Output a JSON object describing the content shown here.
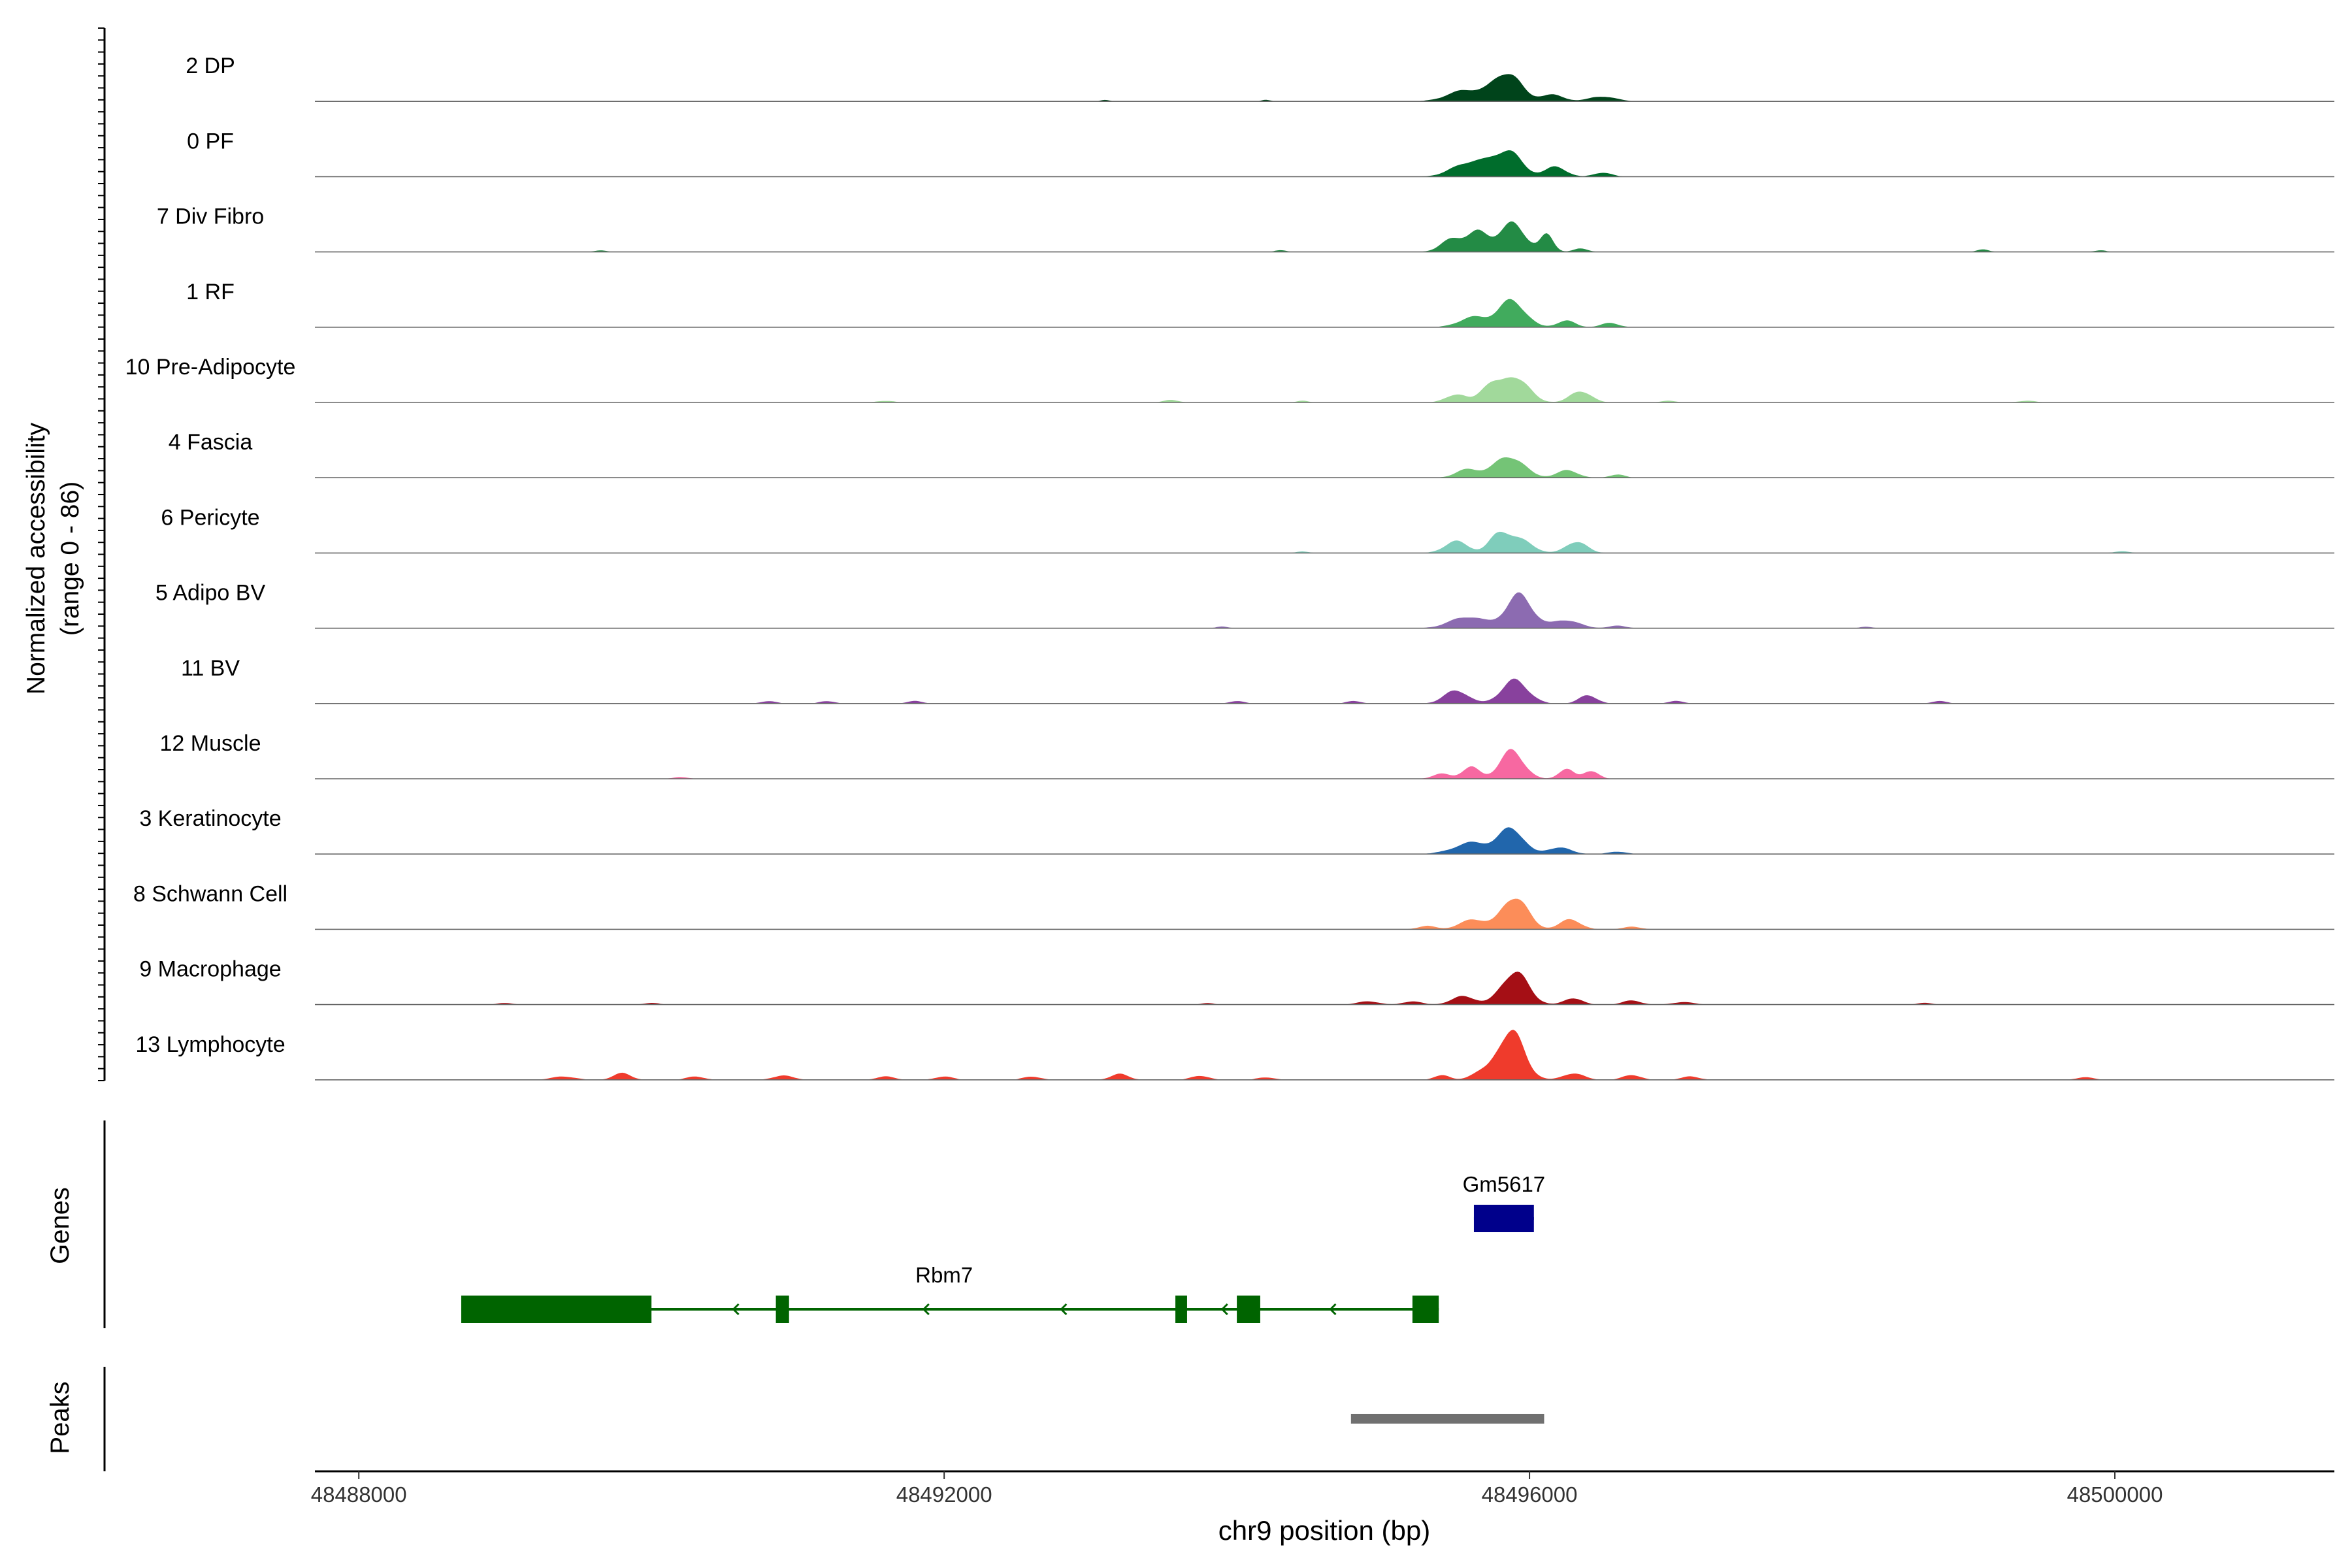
{
  "chart_data": {
    "type": "area",
    "title": "",
    "ylabel": "Normalized accessibility",
    "ylabel2": "(range 0 - 86)",
    "xlabel": "chr9 position (bp)",
    "xlim": [
      48487700,
      48501500
    ],
    "ylim": [
      0,
      86
    ],
    "x_ticks": [
      48488000,
      48492000,
      48496000,
      48500000
    ],
    "x_tick_labels": [
      "48488000",
      "48492000",
      "48496000",
      "48500000"
    ],
    "tracks": [
      {
        "name": "2 DP",
        "color": "#00441b",
        "peaks": [
          [
            48495580,
            14,
            130
          ],
          [
            48495850,
            34,
            90
          ],
          [
            48496150,
            8,
            80
          ],
          [
            48496500,
            6,
            90
          ],
          [
            48493100,
            2,
            30
          ],
          [
            48494200,
            2,
            30
          ]
        ]
      },
      {
        "name": "0 PF",
        "color": "#006d2c",
        "peaks": [
          [
            48495600,
            18,
            120
          ],
          [
            48495850,
            30,
            95
          ],
          [
            48496180,
            12,
            70
          ],
          [
            48496500,
            5,
            60
          ]
        ]
      },
      {
        "name": "7 Div Fibro",
        "color": "#238b45",
        "peaks": [
          [
            48495480,
            16,
            80
          ],
          [
            48495650,
            22,
            70
          ],
          [
            48495880,
            34,
            90
          ],
          [
            48496120,
            20,
            45
          ],
          [
            48496350,
            4,
            50
          ],
          [
            48489650,
            2,
            40
          ],
          [
            48494300,
            2,
            40
          ],
          [
            48499100,
            3,
            40
          ],
          [
            48499900,
            2,
            40
          ]
        ]
      },
      {
        "name": "1 RF",
        "color": "#41ab5d",
        "peaks": [
          [
            48495620,
            12,
            100
          ],
          [
            48495880,
            32,
            90
          ],
          [
            48496250,
            8,
            60
          ],
          [
            48496550,
            5,
            60
          ]
        ]
      },
      {
        "name": "10 Pre-Adipocyte",
        "color": "#a1d99b",
        "peaks": [
          [
            48495500,
            10,
            70
          ],
          [
            48495720,
            20,
            60
          ],
          [
            48495900,
            32,
            90
          ],
          [
            48496350,
            14,
            70
          ],
          [
            48491600,
            2,
            60
          ],
          [
            48493550,
            3,
            50
          ],
          [
            48494450,
            2,
            40
          ],
          [
            48496950,
            2,
            50
          ],
          [
            48499400,
            2,
            60
          ]
        ]
      },
      {
        "name": "4 Fascia",
        "color": "#74c476",
        "peaks": [
          [
            48495580,
            10,
            80
          ],
          [
            48495860,
            26,
            100
          ],
          [
            48496260,
            9,
            70
          ],
          [
            48496600,
            4,
            50
          ]
        ]
      },
      {
        "name": "6 Pericyte",
        "color": "#7fcdbb",
        "peaks": [
          [
            48495500,
            14,
            80
          ],
          [
            48495800,
            24,
            70
          ],
          [
            48495950,
            14,
            80
          ],
          [
            48496320,
            14,
            70
          ],
          [
            48500050,
            2,
            50
          ],
          [
            48494450,
            2,
            40
          ]
        ]
      },
      {
        "name": "5 Adipo BV",
        "color": "#8c6bb1",
        "peaks": [
          [
            48495580,
            14,
            120
          ],
          [
            48495930,
            40,
            90
          ],
          [
            48496250,
            10,
            90
          ],
          [
            48496600,
            3,
            60
          ],
          [
            48493900,
            2,
            40
          ],
          [
            48498300,
            2,
            40
          ]
        ]
      },
      {
        "name": "11 BV",
        "color": "#88419d",
        "peaks": [
          [
            48495500,
            16,
            80
          ],
          [
            48495900,
            28,
            90
          ],
          [
            48496400,
            10,
            60
          ],
          [
            48490800,
            3,
            50
          ],
          [
            48491200,
            3,
            50
          ],
          [
            48491800,
            3,
            50
          ],
          [
            48494000,
            3,
            50
          ],
          [
            48494800,
            3,
            50
          ],
          [
            48497000,
            3,
            50
          ],
          [
            48498800,
            3,
            50
          ]
        ]
      },
      {
        "name": "12 Muscle",
        "color": "#f768a1",
        "peaks": [
          [
            48495400,
            6,
            60
          ],
          [
            48495600,
            14,
            60
          ],
          [
            48495880,
            34,
            80
          ],
          [
            48496250,
            12,
            50
          ],
          [
            48496420,
            10,
            50
          ],
          [
            48490200,
            2,
            50
          ]
        ]
      },
      {
        "name": "3 Keratinocyte",
        "color": "#2166ac",
        "peaks": [
          [
            48495620,
            14,
            130
          ],
          [
            48495880,
            30,
            80
          ],
          [
            48496200,
            8,
            80
          ],
          [
            48496600,
            3,
            60
          ]
        ]
      },
      {
        "name": "8 Schwann Cell",
        "color": "#fc8d59",
        "peaks": [
          [
            48495300,
            4,
            60
          ],
          [
            48495620,
            12,
            90
          ],
          [
            48495900,
            40,
            85
          ],
          [
            48496280,
            12,
            70
          ],
          [
            48496700,
            3,
            60
          ]
        ]
      },
      {
        "name": "9 Macrophage",
        "color": "#a50f15",
        "peaks": [
          [
            48494900,
            4,
            70
          ],
          [
            48495200,
            4,
            60
          ],
          [
            48495550,
            10,
            80
          ],
          [
            48495900,
            40,
            90
          ],
          [
            48496300,
            8,
            60
          ],
          [
            48496700,
            5,
            60
          ],
          [
            48497050,
            3,
            70
          ],
          [
            48489000,
            2,
            50
          ],
          [
            48490000,
            2,
            50
          ],
          [
            48493800,
            2,
            40
          ],
          [
            48498700,
            2,
            50
          ]
        ]
      },
      {
        "name": "13 Lymphocyte",
        "color": "#ef3b2c",
        "peaks": [
          [
            48495400,
            6,
            50
          ],
          [
            48495650,
            8,
            60
          ],
          [
            48495870,
            60,
            90
          ],
          [
            48496300,
            8,
            70
          ],
          [
            48496700,
            6,
            60
          ],
          [
            48497100,
            4,
            60
          ],
          [
            48489400,
            4,
            80
          ],
          [
            48489800,
            8,
            60
          ],
          [
            48490300,
            4,
            60
          ],
          [
            48490900,
            5,
            70
          ],
          [
            48491600,
            4,
            60
          ],
          [
            48492000,
            4,
            60
          ],
          [
            48492600,
            4,
            60
          ],
          [
            48493200,
            7,
            60
          ],
          [
            48493750,
            5,
            60
          ],
          [
            48494200,
            3,
            60
          ],
          [
            48499800,
            3,
            60
          ]
        ]
      }
    ],
    "genes": [
      {
        "name": "Gm5617",
        "color": "#00008b",
        "start": 48495620,
        "end": 48496030,
        "strand": "+",
        "exons": [
          [
            48495620,
            48496030
          ]
        ]
      },
      {
        "name": "Rbm7",
        "color": "#006400",
        "start": 48488700,
        "end": 48495380,
        "strand": "-",
        "exons": [
          [
            48488700,
            48490000
          ],
          [
            48490850,
            48490940
          ],
          [
            48493580,
            48493660
          ],
          [
            48494000,
            48494160
          ],
          [
            48495200,
            48495380
          ]
        ]
      }
    ],
    "peaks_track": [
      {
        "start": 48494780,
        "end": 48496100,
        "color": "#707070"
      }
    ],
    "panel_labels": {
      "genes": "Genes",
      "peaks": "Peaks"
    }
  }
}
